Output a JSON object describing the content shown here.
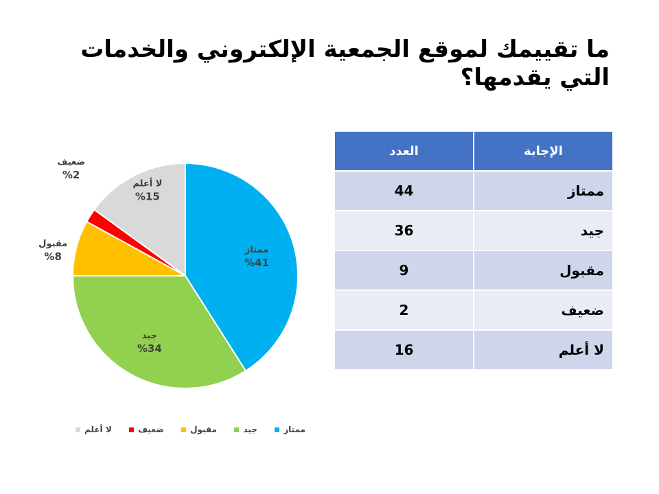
{
  "title": "ما تقييمك لموقع الجمعية الإلكتروني والخدمات التي يقدمها؟",
  "chart_data": {
    "type": "pie",
    "categories": [
      "ممتاز",
      "جيد",
      "مقبول",
      "ضعيف",
      "لا أعلم"
    ],
    "values": [
      41,
      34,
      8,
      2,
      15
    ],
    "value_labels": [
      "%41",
      "%34",
      "%8",
      "%2",
      "%15"
    ],
    "colors": [
      "#00b0f0",
      "#92d050",
      "#ffc000",
      "#ff0000",
      "#d9d9d9"
    ],
    "unit": "%",
    "legend_position": "bottom",
    "start_angle_deg": 0,
    "direction": "clockwise"
  },
  "table": {
    "headers": {
      "answer": "الإجابة",
      "count": "العدد"
    },
    "rows": [
      {
        "answer": "ممتاز",
        "count": "44"
      },
      {
        "answer": "جيد",
        "count": "36"
      },
      {
        "answer": "مقبول",
        "count": "9"
      },
      {
        "answer": "ضعيف",
        "count": "2"
      },
      {
        "answer": "لا أعلم",
        "count": "16"
      }
    ],
    "header_color": "#4472c4"
  }
}
